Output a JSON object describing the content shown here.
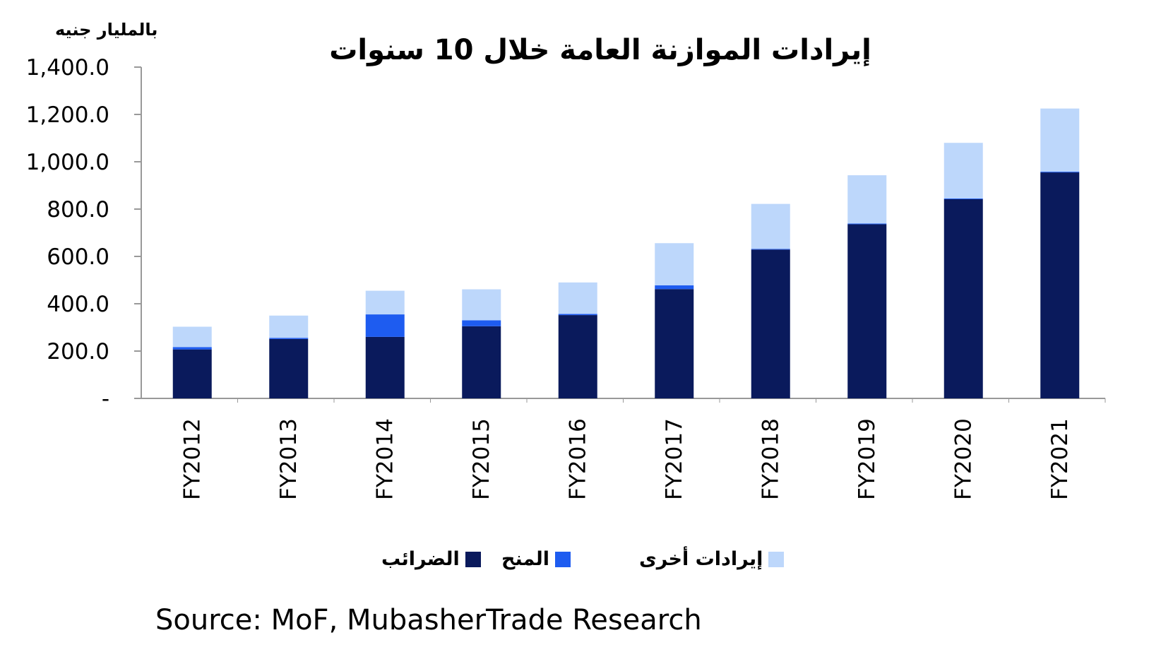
{
  "colors": {
    "taxes": "#0a1a5c",
    "grants": "#1e5cf0",
    "other": "#bdd7fb",
    "axis": "#999999"
  },
  "header": {
    "unit_label": "بالمليار جنيه",
    "title": "إيرادات الموازنة العامة خلال 10 سنوات"
  },
  "footer": {
    "source": "Source: MoF, MubasherTrade Research"
  },
  "chart_data": {
    "type": "bar",
    "stacked": true,
    "title": "إيرادات الموازنة العامة خلال 10 سنوات",
    "ylabel": "بالمليار جنيه",
    "xlabel": "",
    "ylim": [
      0,
      1400
    ],
    "y_ticks": [
      "-",
      "200.0",
      "400.0",
      "600.0",
      "800.0",
      "1,000.0",
      "1,200.0",
      "1,400.0"
    ],
    "categories": [
      "FY2012",
      "FY2013",
      "FY2014",
      "FY2015",
      "FY2016",
      "FY2017",
      "FY2018",
      "FY2019",
      "FY2020",
      "FY2021"
    ],
    "series": [
      {
        "name": "الضرائب",
        "color": "#0a1a5c",
        "values": [
          207,
          251,
          260,
          305,
          352,
          462,
          629,
          736,
          842,
          955
        ]
      },
      {
        "name": "المنح",
        "color": "#1e5cf0",
        "values": [
          10,
          5,
          95,
          25,
          5,
          16,
          3,
          3,
          3,
          3
        ]
      },
      {
        "name": "إيرادات أخرى",
        "color": "#bdd7fb",
        "values": [
          86,
          94,
          100,
          131,
          133,
          178,
          190,
          204,
          235,
          267
        ]
      }
    ],
    "legend": "bottom",
    "grid": false
  },
  "legend_items": [
    {
      "label": "الضرائب",
      "color": "#0a1a5c"
    },
    {
      "label": "المنح",
      "color": "#1e5cf0"
    },
    {
      "label": "إيرادات أخرى",
      "color": "#bdd7fb"
    }
  ]
}
